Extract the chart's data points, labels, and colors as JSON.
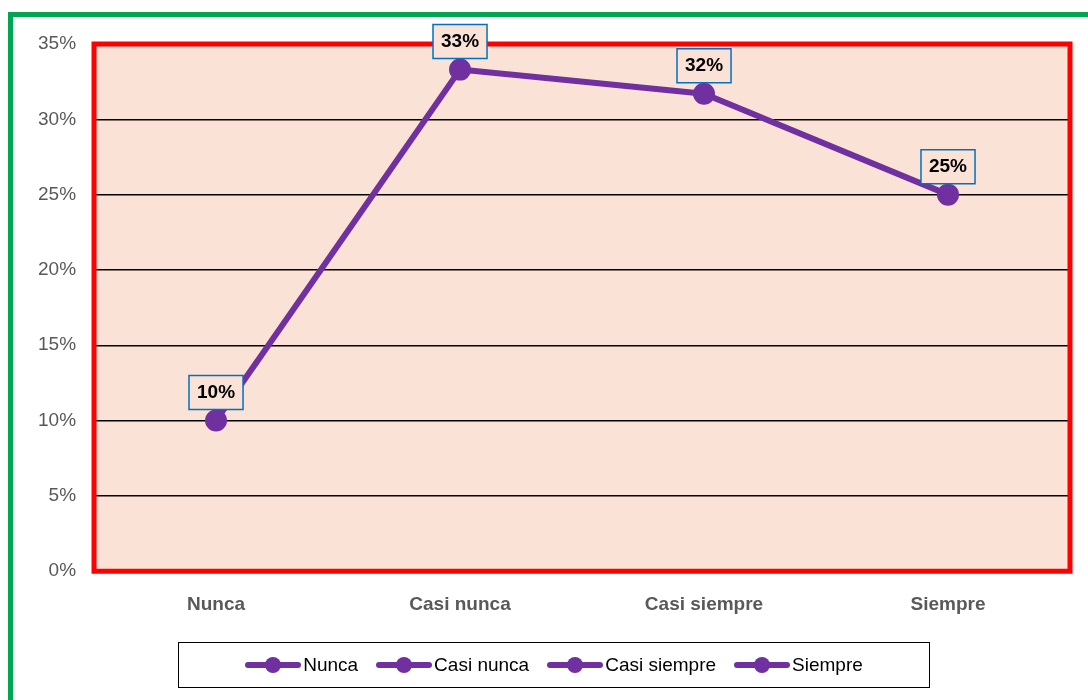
{
  "chart_data": {
    "type": "line",
    "categories": [
      "Nunca",
      "Casi nunca",
      "Casi siempre",
      "Siempre"
    ],
    "series": [
      {
        "color": "#7030a0",
        "values": [
          10,
          33.3,
          31.7,
          25
        ],
        "value_labels": [
          "10%",
          "33%",
          "32%",
          "25%"
        ]
      }
    ],
    "ylim": [
      0,
      35
    ],
    "yticks": [
      {
        "value": 0,
        "label": "0%"
      },
      {
        "value": 5,
        "label": "5%"
      },
      {
        "value": 10,
        "label": "10%"
      },
      {
        "value": 15,
        "label": "15%"
      },
      {
        "value": 20,
        "label": "20%"
      },
      {
        "value": 25,
        "label": "25%"
      },
      {
        "value": 30,
        "label": "30%"
      },
      {
        "value": 35,
        "label": "35%"
      }
    ],
    "grid": "y",
    "marker": "circle",
    "line_style": "solid"
  }
}
